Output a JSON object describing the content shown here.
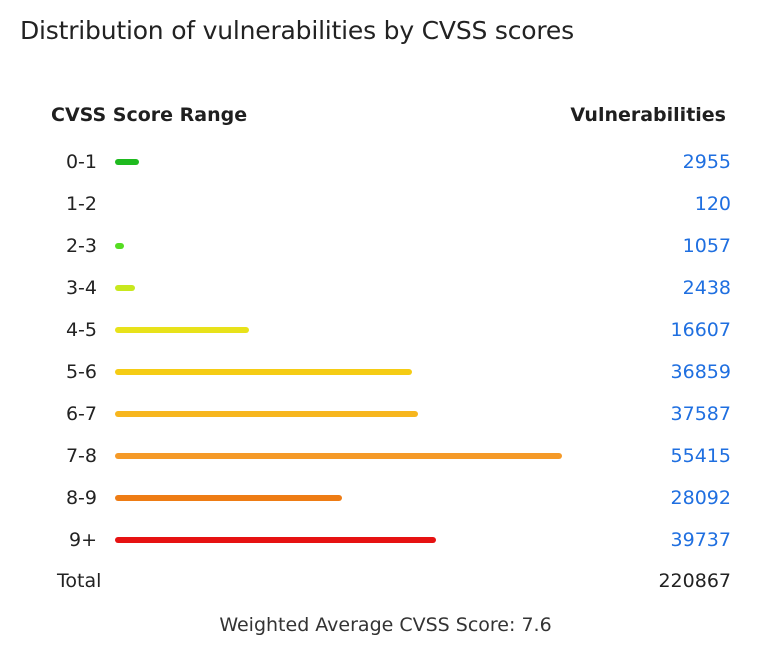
{
  "title": "Distribution of vulnerabilities by CVSS scores",
  "headers": {
    "range": "CVSS Score Range",
    "count": "Vulnerabilities"
  },
  "chart_data": {
    "type": "bar",
    "orientation": "horizontal",
    "title": "Distribution of vulnerabilities by CVSS scores",
    "xlabel": "",
    "ylabel": "",
    "categories": [
      "0-1",
      "1-2",
      "2-3",
      "3-4",
      "4-5",
      "5-6",
      "6-7",
      "7-8",
      "8-9",
      "9+"
    ],
    "values": [
      2955,
      120,
      1057,
      2438,
      16607,
      36859,
      37587,
      55415,
      28092,
      39737
    ],
    "colors": [
      "#1fba1f",
      "#3cc43c",
      "#55dd22",
      "#c8e81e",
      "#e8e21a",
      "#f5cc14",
      "#f7b61e",
      "#f59a28",
      "#ee7c14",
      "#e61212"
    ],
    "xlim": [
      0,
      55415
    ],
    "grid": false,
    "legend": "none"
  },
  "rows": [
    {
      "label": "0-1",
      "value": "2955"
    },
    {
      "label": "1-2",
      "value": "120"
    },
    {
      "label": "2-3",
      "value": "1057"
    },
    {
      "label": "3-4",
      "value": "2438"
    },
    {
      "label": "4-5",
      "value": "16607"
    },
    {
      "label": "5-6",
      "value": "36859"
    },
    {
      "label": "6-7",
      "value": "37587"
    },
    {
      "label": "7-8",
      "value": "55415"
    },
    {
      "label": "8-9",
      "value": "28092"
    },
    {
      "label": "9+",
      "value": "39737"
    }
  ],
  "total": {
    "label": "Total",
    "value": "220867"
  },
  "footer": {
    "label": "Weighted Average CVSS Score: ",
    "value": "7.6"
  }
}
